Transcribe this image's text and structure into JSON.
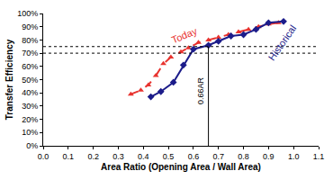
{
  "chart_data": {
    "type": "line",
    "x_label": "Area Ratio (Opening Area / Wall Area)",
    "y_label": "Transfer Efficiency",
    "series": [
      {
        "name": "Today",
        "color": "#e8332f",
        "marker": "triangle-up",
        "line_style": "dashed",
        "x": [
          0.35,
          0.39,
          0.42,
          0.45,
          0.48,
          0.51,
          0.55,
          0.58,
          0.62,
          0.66,
          0.7,
          0.74,
          0.78,
          0.82,
          0.86,
          0.9,
          0.94
        ],
        "values": [
          39,
          42,
          46,
          53,
          62,
          67,
          71,
          74,
          78,
          80,
          82,
          84,
          86,
          88,
          90,
          92,
          93
        ]
      },
      {
        "name": "Historical",
        "color": "#1c1c8a",
        "marker": "diamond",
        "line_style": "solid",
        "x": [
          0.43,
          0.47,
          0.52,
          0.56,
          0.6,
          0.66,
          0.7,
          0.75,
          0.8,
          0.85,
          0.9,
          0.96
        ],
        "values": [
          37,
          41,
          48,
          61,
          73,
          76,
          79,
          83,
          84,
          88,
          93,
          94
        ]
      }
    ],
    "hlines": [
      70,
      75
    ],
    "vline": {
      "value": 0.66,
      "label": "0.66AR"
    },
    "xlim": [
      0,
      1.1
    ],
    "xticks": [
      {
        "value": 0,
        "label": "0.0"
      },
      0.1,
      0.2,
      0.3,
      0.4,
      0.5,
      0.6,
      0.7,
      0.8,
      0.9,
      {
        "value": 1,
        "label": "1.0"
      },
      1.1
    ],
    "ylim": [
      0,
      100
    ],
    "yticks": [
      {
        "value": 0,
        "label": "0%"
      },
      {
        "value": 10,
        "label": "10%"
      },
      {
        "value": 20,
        "label": "20%"
      },
      {
        "value": 30,
        "label": "30%"
      },
      {
        "value": 40,
        "label": "40%"
      },
      {
        "value": 50,
        "label": "50%"
      },
      {
        "value": 60,
        "label": "60%"
      },
      {
        "value": 70,
        "label": "70%"
      },
      {
        "value": 80,
        "label": "80%"
      },
      {
        "value": 90,
        "label": "90%"
      },
      {
        "value": 100,
        "label": "100%"
      }
    ],
    "grid": false,
    "legend": false
  }
}
